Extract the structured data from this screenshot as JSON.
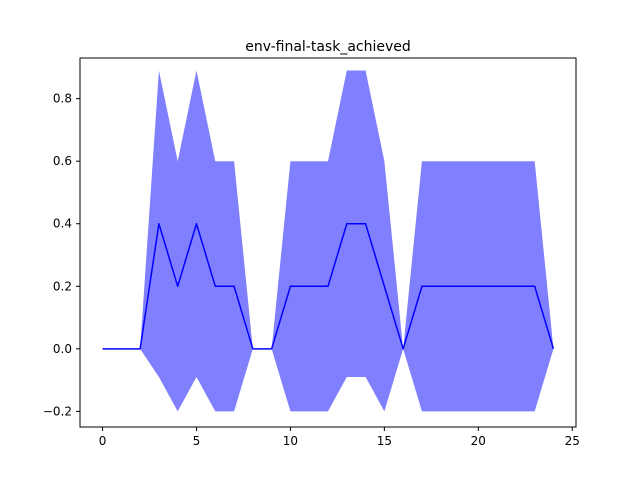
{
  "chart_data": {
    "type": "line",
    "title": "env-final-task_achieved",
    "xlabel": "",
    "ylabel": "",
    "xlim": [
      -1.2,
      25.2
    ],
    "ylim": [
      -0.25,
      0.93
    ],
    "xticks": [
      0,
      5,
      10,
      15,
      20,
      25
    ],
    "yticks": [
      -0.2,
      0.0,
      0.2,
      0.4,
      0.6,
      0.8
    ],
    "xtick_labels": [
      "0",
      "5",
      "10",
      "15",
      "20",
      "25"
    ],
    "ytick_labels": [
      "−0.2",
      "0.0",
      "0.2",
      "0.4",
      "0.6",
      "0.8"
    ],
    "grid": false,
    "series": [
      {
        "x": [
          0,
          1,
          2,
          3,
          4,
          5,
          6,
          7,
          8,
          9,
          10,
          11,
          12,
          13,
          14,
          15,
          16,
          17,
          18,
          19,
          20,
          21,
          22,
          23,
          24
        ],
        "values": [
          0,
          0,
          0,
          0.4,
          0.2,
          0.4,
          0.2,
          0.2,
          0,
          0,
          0.2,
          0.2,
          0.2,
          0.4,
          0.4,
          0.2,
          0,
          0.2,
          0.2,
          0.2,
          0.2,
          0.2,
          0.2,
          0.2,
          0
        ],
        "upper": [
          0,
          0,
          0,
          0.89,
          0.6,
          0.89,
          0.6,
          0.6,
          0,
          0,
          0.6,
          0.6,
          0.6,
          0.89,
          0.89,
          0.6,
          0,
          0.6,
          0.6,
          0.6,
          0.6,
          0.6,
          0.6,
          0.6,
          0
        ],
        "lower": [
          0,
          0,
          0,
          -0.09,
          -0.2,
          -0.09,
          -0.2,
          -0.2,
          0,
          0,
          -0.2,
          -0.2,
          -0.2,
          -0.09,
          -0.09,
          -0.2,
          0,
          -0.2,
          -0.2,
          -0.2,
          -0.2,
          -0.2,
          -0.2,
          -0.2,
          0
        ],
        "line_color": "#0000ff",
        "band_color": "#8080ff"
      }
    ]
  }
}
